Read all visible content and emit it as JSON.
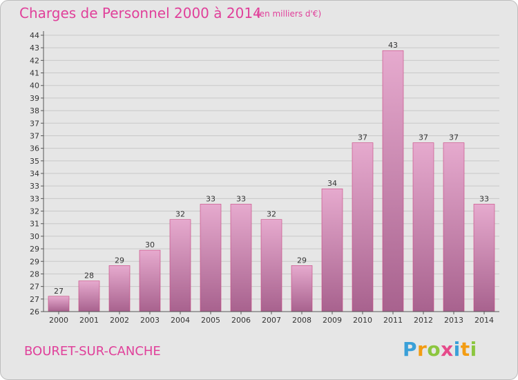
{
  "title": "Charges de Personnel 2000 à 2014",
  "subtitle": "(en milliers d'€)",
  "commune": "BOURET-SUR-CANCHE",
  "brand": {
    "letters": [
      "P",
      "r",
      "o",
      "x",
      "i",
      "t",
      "i"
    ],
    "colors": [
      "#3aa0d8",
      "#f39c12",
      "#8cc63f",
      "#e64a8a",
      "#3aa0d8",
      "#f39c12",
      "#8cc63f"
    ]
  },
  "colors": {
    "bar_top": "#e6aace",
    "bar_bottom": "#a8628e",
    "bar_edge": "#c9437f",
    "grid": "#c8c8c8",
    "text": "#333333"
  },
  "chart_data": {
    "type": "bar",
    "categories": [
      "2000",
      "2001",
      "2002",
      "2003",
      "2004",
      "2005",
      "2006",
      "2007",
      "2008",
      "2009",
      "2010",
      "2011",
      "2012",
      "2013",
      "2014"
    ],
    "values": [
      27,
      28,
      29,
      30,
      32,
      33,
      33,
      32,
      29,
      34,
      37,
      43,
      37,
      37,
      33
    ],
    "data_labels": [
      "27",
      "28",
      "29",
      "30",
      "32",
      "33",
      "33",
      "32",
      "29",
      "34",
      "37",
      "43",
      "37",
      "37",
      "33"
    ],
    "y_tick_labels": [
      "26",
      "27",
      "27",
      "28",
      "29",
      "29",
      "30",
      "31",
      "32",
      "33",
      "33",
      "34",
      "35",
      "36",
      "37",
      "37",
      "38",
      "39",
      "40",
      "41",
      "42",
      "43",
      "44"
    ],
    "ylim": [
      26,
      44
    ],
    "grid": true,
    "xlabel": "",
    "ylabel": ""
  }
}
